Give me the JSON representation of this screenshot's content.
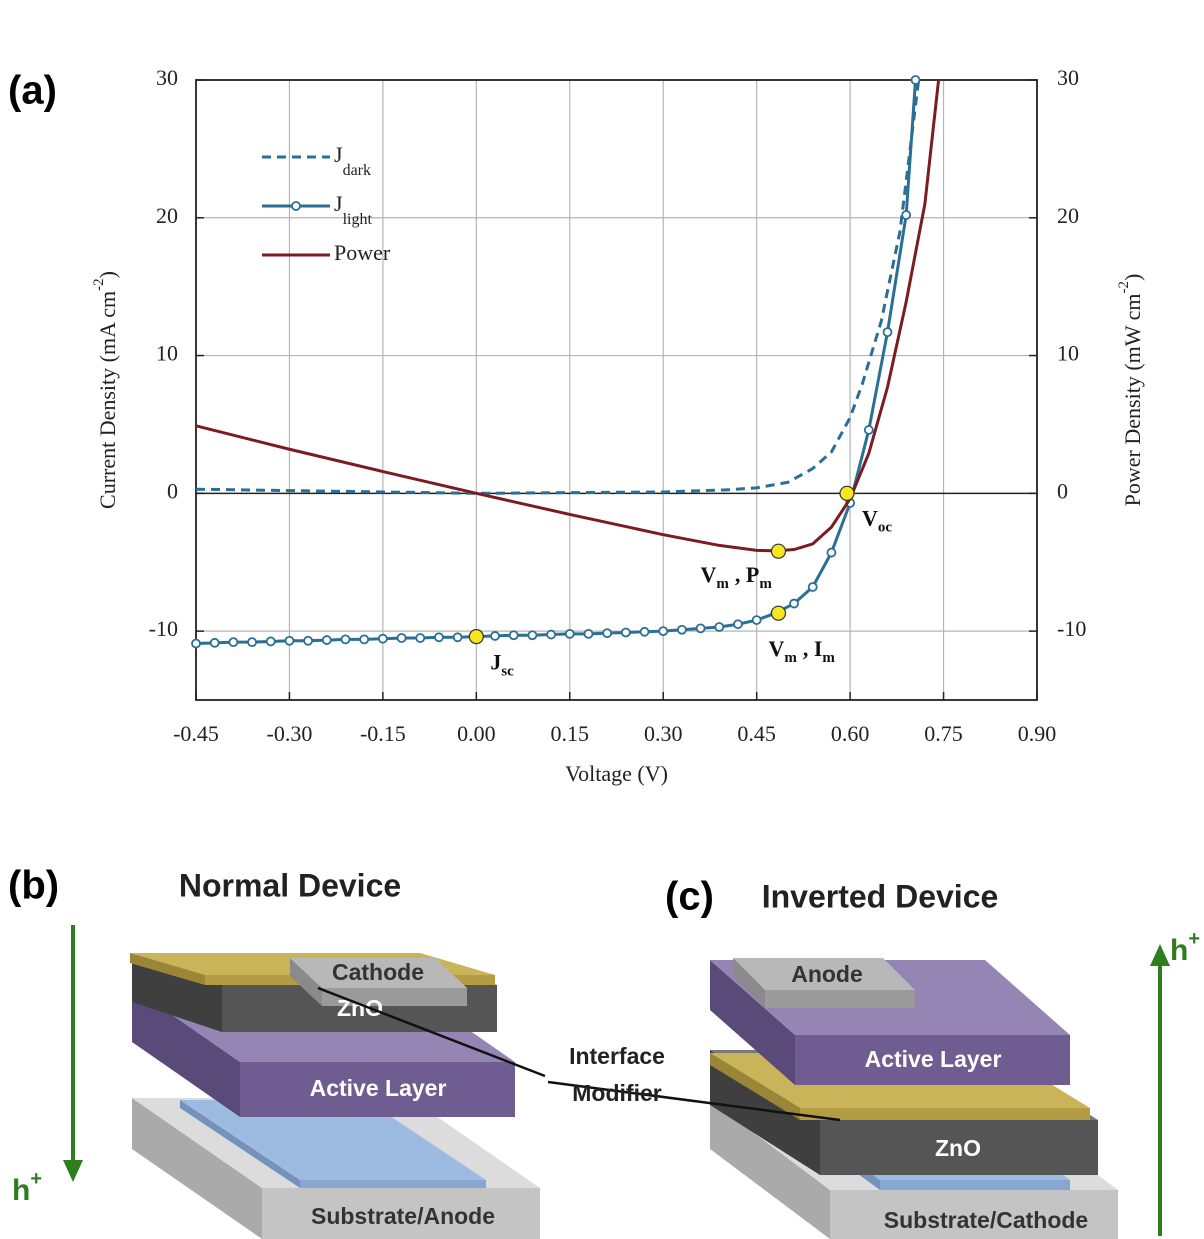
{
  "panels": {
    "a": "(a)",
    "b": "(b)",
    "c": "(c)"
  },
  "chart_data": {
    "type": "line",
    "xlabel": "Voltage (V)",
    "ylabel": {
      "text": "Current Density (mA cm",
      "sup": "-2",
      "end": ")"
    },
    "y2label": {
      "text": "Power Density (mW cm",
      "sup": "-2",
      "end": ")"
    },
    "xlim": [
      -0.45,
      0.9
    ],
    "xticks": [
      -0.45,
      {
        "value": -0.3,
        "label": "-0.30"
      },
      -0.15,
      {
        "value": 0,
        "label": "0.00"
      },
      0.15,
      {
        "value": 0.3,
        "label": "0.30"
      },
      0.45,
      {
        "value": 0.6,
        "label": "0.60"
      },
      0.75,
      {
        "value": 0.9,
        "label": "0.90"
      }
    ],
    "ylim": [
      -15,
      30
    ],
    "yticks": [
      -10,
      0,
      10,
      20,
      30
    ],
    "y2lim": [
      -15,
      30
    ],
    "y2ticks": [
      -10,
      0,
      10,
      20,
      30
    ],
    "grid": true,
    "legend": "upper left",
    "series": [
      {
        "name": "J",
        "name_sub": "dark",
        "color": "#2a6f94",
        "style": "dashed",
        "x": [
          -0.45,
          -0.3,
          -0.15,
          0,
          0.15,
          0.3,
          0.4,
          0.45,
          0.5,
          0.54,
          0.57,
          0.6,
          0.62,
          0.65,
          0.68,
          0.71
        ],
        "values": [
          0.3,
          0.2,
          0.1,
          0,
          0.05,
          0.1,
          0.25,
          0.4,
          0.8,
          1.8,
          3.0,
          5.5,
          8.0,
          12.5,
          19,
          30
        ]
      },
      {
        "name": "J",
        "name_sub": "light",
        "color": "#2a6f94",
        "style": "solid",
        "markers": true,
        "x": [
          -0.45,
          -0.42,
          -0.39,
          -0.36,
          -0.33,
          -0.3,
          -0.27,
          -0.24,
          -0.21,
          -0.18,
          -0.15,
          -0.12,
          -0.09,
          -0.06,
          -0.03,
          0,
          0.03,
          0.06,
          0.09,
          0.12,
          0.15,
          0.18,
          0.21,
          0.24,
          0.27,
          0.3,
          0.33,
          0.36,
          0.39,
          0.42,
          0.45,
          0.48,
          0.51,
          0.54,
          0.57,
          0.6,
          0.63,
          0.66,
          0.69,
          0.705
        ],
        "values": [
          -10.9,
          -10.85,
          -10.8,
          -10.8,
          -10.75,
          -10.7,
          -10.7,
          -10.65,
          -10.6,
          -10.6,
          -10.55,
          -10.5,
          -10.5,
          -10.45,
          -10.45,
          -10.4,
          -10.35,
          -10.3,
          -10.3,
          -10.25,
          -10.2,
          -10.2,
          -10.15,
          -10.1,
          -10.05,
          -10.0,
          -9.9,
          -9.8,
          -9.7,
          -9.5,
          -9.2,
          -8.7,
          -8.0,
          -6.8,
          -4.3,
          -0.7,
          4.6,
          11.7,
          20.2,
          30
        ]
      },
      {
        "name": "Power",
        "color": "#7b1c22",
        "style": "solid",
        "axis": "y2",
        "x": [
          -0.45,
          -0.3,
          -0.15,
          0,
          0.15,
          0.3,
          0.39,
          0.45,
          0.48,
          0.51,
          0.54,
          0.57,
          0.6,
          0.63,
          0.66,
          0.69,
          0.72,
          0.742
        ],
        "values": [
          4.9,
          3.2,
          1.58,
          0,
          -1.53,
          -3.0,
          -3.78,
          -4.14,
          -4.18,
          -4.08,
          -3.67,
          -2.45,
          -0.4,
          2.9,
          7.7,
          13.9,
          21,
          30
        ]
      }
    ],
    "annotations": [
      {
        "parts": [
          {
            "text": "J",
            "sub": "sc"
          }
        ],
        "x": 0,
        "y": -10.4
      },
      {
        "parts": [
          {
            "text": "V",
            "sub": "oc"
          }
        ],
        "x": 0.595,
        "y": 0
      },
      {
        "parts": [
          {
            "text": "V",
            "sub": "m"
          },
          {
            "text": ", P",
            "sub": "m"
          }
        ],
        "x": 0.485,
        "y": -4.2,
        "axis": "y2"
      },
      {
        "parts": [
          {
            "text": "V",
            "sub": "m"
          },
          {
            "text": ", I",
            "sub": "m"
          }
        ],
        "x": 0.485,
        "y": -8.7
      }
    ]
  },
  "diagrams": {
    "normal": {
      "title": "Normal Device",
      "layers": [
        "Cathode",
        "ZnO",
        "Active Layer",
        "Substrate/Anode"
      ],
      "carrier": {
        "text": "h",
        "sup": "+"
      }
    },
    "inverted": {
      "title": "Inverted Device",
      "layers": [
        "Anode",
        "Active Layer",
        "ZnO",
        "Substrate/Cathode"
      ],
      "carrier": {
        "text": "h",
        "sup": "+"
      }
    },
    "shared_label": [
      "Interface",
      "Modifier"
    ]
  }
}
